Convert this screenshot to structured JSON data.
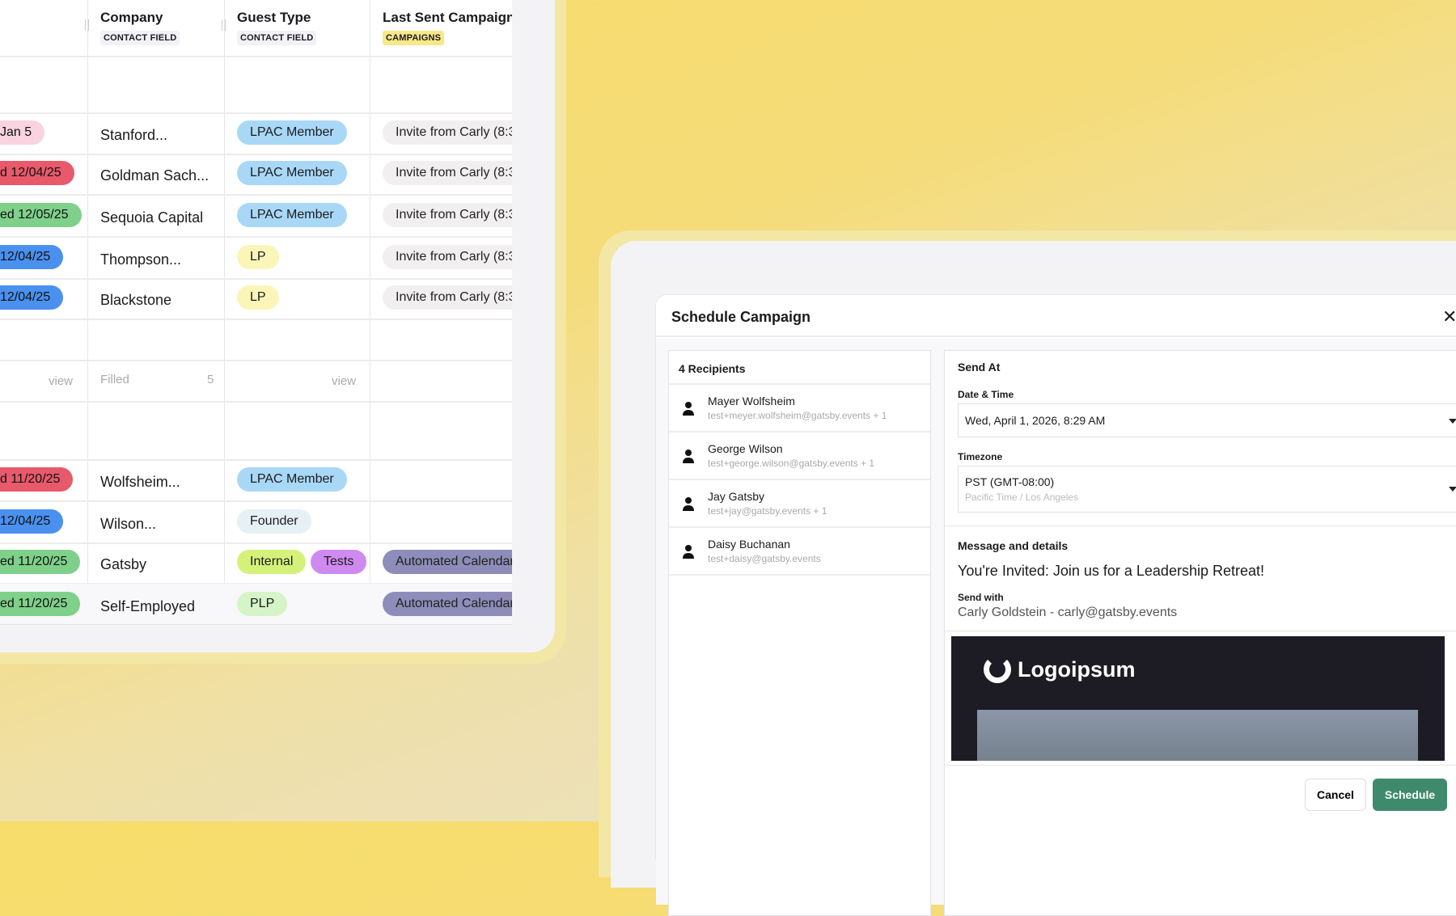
{
  "table": {
    "columns": [
      {
        "title": "Company",
        "tag": "CONTACT FIELD"
      },
      {
        "title": "Guest Type",
        "tag": "CONTACT FIELD"
      },
      {
        "title": "Last Sent Campaign",
        "tag": "CAMPAIGNS"
      }
    ],
    "rows_top": [
      {
        "status": "Jan 5",
        "status_color": "#f9d3e0",
        "company": "Stanford...",
        "types": [
          {
            "label": "LPAC Member",
            "color": "#a9d8f7"
          }
        ],
        "campaign": "Invite from Carly (8:3",
        "campaign_color": "#f1efef"
      },
      {
        "status": "d 12/04/25",
        "status_color": "#e85a6b",
        "company": "Goldman Sach...",
        "types": [
          {
            "label": "LPAC Member",
            "color": "#a9d8f7"
          }
        ],
        "campaign": "Invite from Carly (8:3",
        "campaign_color": "#f1efef"
      },
      {
        "status": "ed 12/05/25",
        "status_color": "#7fd08a",
        "company": "Sequoia Capital",
        "types": [
          {
            "label": "LPAC Member",
            "color": "#a9d8f7"
          }
        ],
        "campaign": "Invite from Carly (8:3",
        "campaign_color": "#f1efef"
      },
      {
        "status": "12/04/25",
        "status_color": "#4a90ef",
        "company": "Thompson...",
        "types": [
          {
            "label": "LP",
            "color": "#fbf6b8"
          }
        ],
        "campaign": "Invite from Carly (8:3",
        "campaign_color": "#f1efef"
      },
      {
        "status": "12/04/25",
        "status_color": "#4a90ef",
        "company": "Blackstone",
        "types": [
          {
            "label": "LP",
            "color": "#fbf6b8"
          }
        ],
        "campaign": "Invite from Carly (8:3",
        "campaign_color": "#f1efef"
      }
    ],
    "summary": {
      "view1": "view",
      "filled": "Filled",
      "filled_count": "5",
      "view2": "view"
    },
    "rows_bottom": [
      {
        "status": "d 11/20/25",
        "status_color": "#e85a6b",
        "company": "Wolfsheim...",
        "types": [
          {
            "label": "LPAC Member",
            "color": "#a9d8f7"
          }
        ],
        "campaign": "",
        "campaign_color": ""
      },
      {
        "status": "12/04/25",
        "status_color": "#4a90ef",
        "company": "Wilson...",
        "types": [
          {
            "label": "Founder",
            "color": "#e6f1f5"
          }
        ],
        "campaign": "",
        "campaign_color": ""
      },
      {
        "status": "ed 11/20/25",
        "status_color": "#7fd08a",
        "company": "Gatsby",
        "types": [
          {
            "label": "Internal",
            "color": "#d4f27a"
          },
          {
            "label": "Tests",
            "color": "#cf8af0"
          }
        ],
        "campaign": "Automated Calendar",
        "campaign_color": "#8e8cb8"
      },
      {
        "status": "ed 11/20/25",
        "status_color": "#7fd08a",
        "company": "Self-Employed",
        "types": [
          {
            "label": "PLP",
            "color": "#d5f5c8"
          }
        ],
        "campaign": "Automated Calendar",
        "campaign_color": "#8e8cb8"
      }
    ]
  },
  "dialog": {
    "title": "Schedule Campaign",
    "close_icon": "close-icon",
    "recipients_header": "4 Recipients",
    "recipients": [
      {
        "name": "Mayer Wolfsheim",
        "email": "test+meyer.wolfsheim@gatsby.events + 1"
      },
      {
        "name": "George Wilson",
        "email": "test+george.wilson@gatsby.events + 1"
      },
      {
        "name": "Jay Gatsby",
        "email": "test+jay@gatsby.events + 1"
      },
      {
        "name": "Daisy Buchanan",
        "email": "test+daisy@gatsby.events"
      }
    ],
    "send_at": "Send At",
    "date_label": "Date & Time",
    "date_value": "Wed, April 1, 2026, 8:29 AM",
    "tz_label": "Timezone",
    "tz_value": "PST (GMT-08:00)",
    "tz_sub": "Pacific Time / Los Angeles",
    "message_label": "Message and details",
    "subject": "You're Invited: Join us for a Leadership Retreat!",
    "send_with_label": "Send with",
    "send_with": "Carly Goldstein - carly@gatsby.events",
    "preview_logo": "Logoipsum",
    "cancel": "Cancel",
    "schedule": "Schedule",
    "accent": "#3f8a6c"
  }
}
